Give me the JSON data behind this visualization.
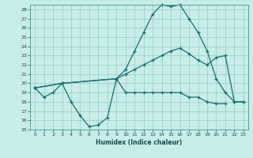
{
  "xlabel": "Humidex (Indice chaleur)",
  "bg_color": "#c8ece8",
  "grid_color": "#9dcfcc",
  "line_color": "#1a6b6b",
  "xlim": [
    -0.5,
    23.5
  ],
  "ylim": [
    15,
    28.5
  ],
  "yticks": [
    15,
    16,
    17,
    18,
    19,
    20,
    21,
    22,
    23,
    24,
    25,
    26,
    27,
    28
  ],
  "xticks": [
    0,
    1,
    2,
    3,
    4,
    5,
    6,
    7,
    8,
    9,
    10,
    11,
    12,
    13,
    14,
    15,
    16,
    17,
    18,
    19,
    20,
    21,
    22,
    23
  ],
  "line1_x": [
    0,
    1,
    2,
    3,
    4,
    5,
    6,
    7,
    8,
    9,
    10,
    11,
    12,
    13,
    14,
    15,
    16,
    17,
    18,
    19,
    20,
    21
  ],
  "line1_y": [
    19.5,
    18.5,
    19.0,
    20.0,
    18.0,
    16.5,
    15.3,
    15.5,
    16.3,
    20.5,
    19.0,
    19.0,
    19.0,
    19.0,
    19.0,
    19.0,
    19.0,
    18.5,
    18.5,
    18.0,
    17.8,
    17.8
  ],
  "line2_x": [
    0,
    3,
    9,
    10,
    11,
    12,
    13,
    14,
    15,
    16,
    17,
    18,
    19,
    20,
    21,
    22,
    23
  ],
  "line2_y": [
    19.5,
    20.0,
    20.5,
    21.5,
    23.5,
    25.5,
    27.5,
    28.5,
    28.3,
    28.5,
    27.0,
    25.5,
    23.5,
    20.5,
    19.0,
    18.0,
    18.0
  ],
  "line3_x": [
    0,
    3,
    9,
    10,
    11,
    12,
    13,
    14,
    15,
    16,
    17,
    18,
    19,
    20,
    21,
    22,
    23
  ],
  "line3_y": [
    19.5,
    20.0,
    20.5,
    21.0,
    21.5,
    22.0,
    22.5,
    23.0,
    23.5,
    23.8,
    23.2,
    22.5,
    22.0,
    22.8,
    23.0,
    18.0,
    18.0
  ]
}
